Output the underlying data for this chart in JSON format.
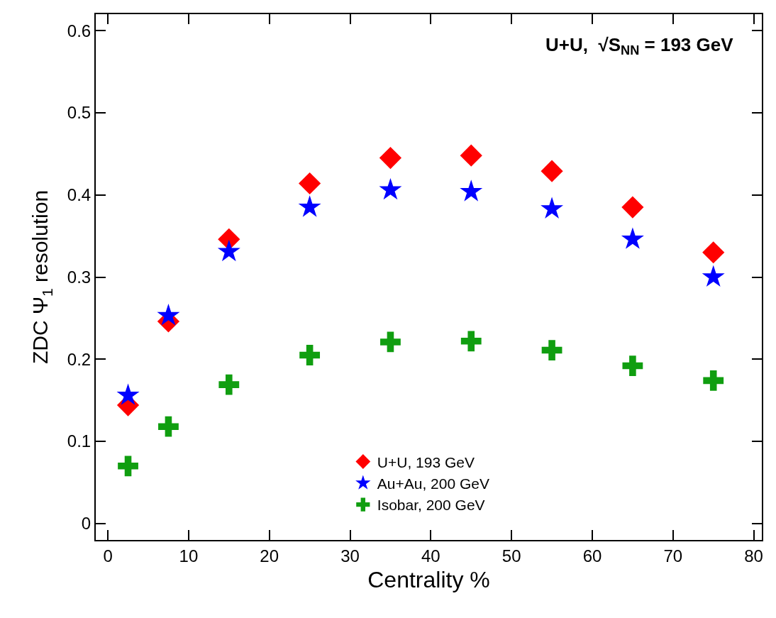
{
  "chart_data": {
    "type": "scatter",
    "xlabel": "Centrality %",
    "ylabel": "ZDC Ψ$_{1}$ resolution",
    "annotations": [
      "U+U,  √S$_{NN}$ = 193 GeV"
    ],
    "x": [
      2.5,
      7.5,
      15,
      25,
      35,
      45,
      55,
      65,
      75
    ],
    "series": [
      {
        "name": "U+U, 193 GeV",
        "color": "#ff0000",
        "marker": "diamond",
        "values": [
          0.144,
          0.246,
          0.346,
          0.414,
          0.445,
          0.448,
          0.429,
          0.385,
          0.33
        ]
      },
      {
        "name": "Au+Au, 200 GeV",
        "color": "#0000ff",
        "marker": "star",
        "values": [
          0.156,
          0.253,
          0.331,
          0.385,
          0.406,
          0.404,
          0.383,
          0.346,
          0.3
        ]
      },
      {
        "name": "Isobar, 200 GeV",
        "color": "#109e10",
        "marker": "cross",
        "values": [
          0.07,
          0.118,
          0.169,
          0.205,
          0.221,
          0.222,
          0.211,
          0.192,
          0.174
        ]
      }
    ],
    "xlim": [
      -1.5,
      81
    ],
    "xticks": [
      0,
      10,
      20,
      30,
      40,
      50,
      60,
      70,
      80
    ],
    "ylim": [
      -0.02,
      0.62
    ],
    "yticks": [
      0,
      0.1,
      0.2,
      0.3,
      0.4,
      0.5,
      0.6
    ],
    "grid": false,
    "legend": "bottom"
  }
}
